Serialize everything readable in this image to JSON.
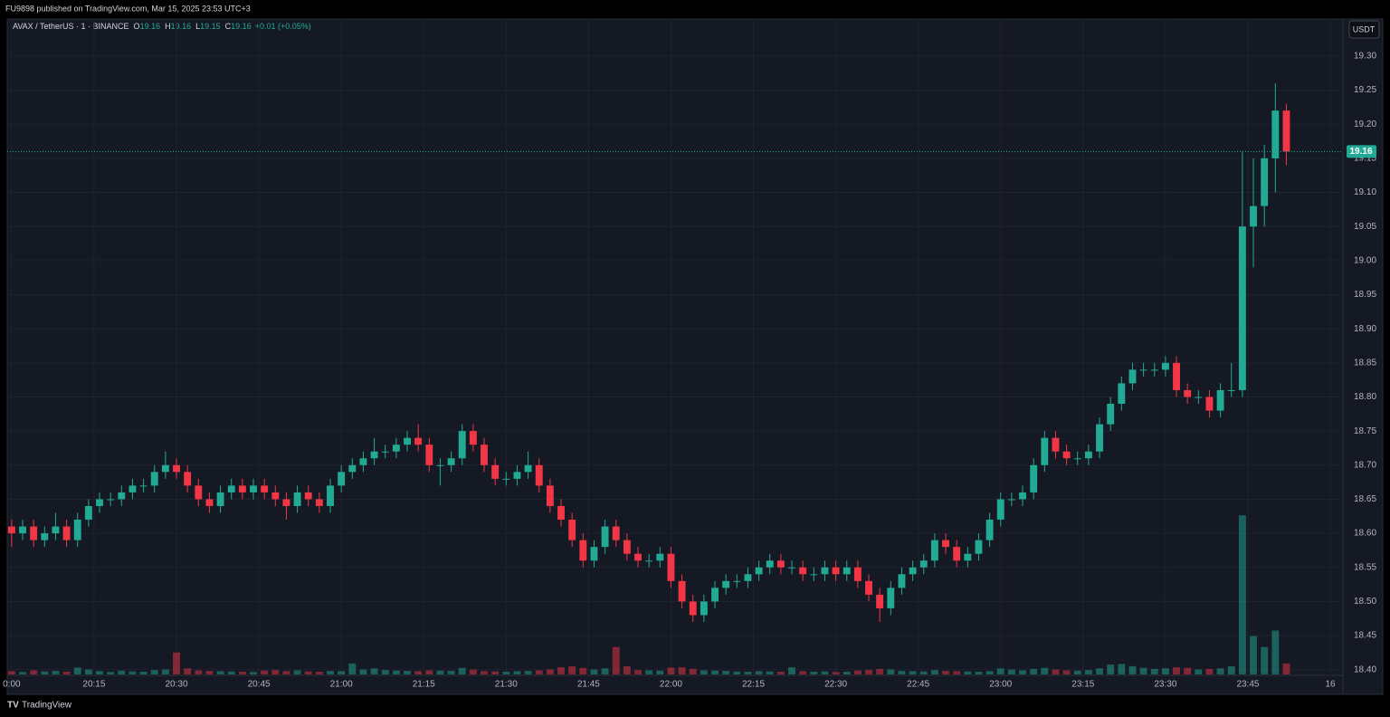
{
  "header": {
    "title": "FU9898 published on TradingView.com, Mar 15, 2025 23:53 UTC+3",
    "symbol": "AVAX / TetherUS · 1 · BINANCE",
    "legend": [
      {
        "label": "O",
        "value": 19.16
      },
      {
        "label": "H",
        "value": 19.16
      },
      {
        "label": "L",
        "value": 19.15
      },
      {
        "label": "C",
        "value": 19.16
      }
    ],
    "change": "+0.01 (+0.05%)",
    "currency_button": "USDT"
  },
  "footer": {
    "brand": "TradingView"
  },
  "chart_data": {
    "type": "candlestick",
    "up_color": "#22ab94",
    "down_color": "#f23645",
    "grid": true,
    "last_price": 19.16,
    "xlim": [
      -0.8,
      242.3
    ],
    "xticks": [
      {
        "value": 0,
        "label": "0:00"
      },
      {
        "value": 15,
        "label": "20:15"
      },
      {
        "value": 30,
        "label": "20:30"
      },
      {
        "value": 45,
        "label": "20:45"
      },
      {
        "value": 60,
        "label": "21:00"
      },
      {
        "value": 75,
        "label": "21:15"
      },
      {
        "value": 90,
        "label": "21:30"
      },
      {
        "value": 105,
        "label": "21:45"
      },
      {
        "value": 120,
        "label": "22:00"
      },
      {
        "value": 135,
        "label": "22:15"
      },
      {
        "value": 150,
        "label": "22:30"
      },
      {
        "value": 165,
        "label": "22:45"
      },
      {
        "value": 180,
        "label": "23:00"
      },
      {
        "value": 195,
        "label": "23:15"
      },
      {
        "value": 210,
        "label": "23:30"
      },
      {
        "value": 225,
        "label": "23:45"
      },
      {
        "value": 240,
        "label": "16"
      }
    ],
    "ylim": [
      18.393,
      19.353
    ],
    "yticks": [
      {
        "value": 18.4,
        "label": "18.40"
      },
      18.45,
      {
        "value": 18.5,
        "label": "18.50"
      },
      18.55,
      {
        "value": 18.6,
        "label": "18.60"
      },
      18.65,
      {
        "value": 18.7,
        "label": "18.70"
      },
      18.75,
      {
        "value": 18.8,
        "label": "18.80"
      },
      18.85,
      {
        "value": 18.9,
        "label": "18.90"
      },
      18.95,
      {
        "value": 19.0,
        "label": "19.00"
      },
      19.05,
      {
        "value": 19.1,
        "label": "19.10"
      },
      19.15,
      {
        "value": 19.2,
        "label": "19.20"
      },
      19.25,
      {
        "value": 19.3,
        "label": "19.30"
      }
    ],
    "volume_ylim": [
      0,
      66000
    ],
    "x": [
      0,
      2,
      4,
      6,
      8,
      10,
      12,
      14,
      16,
      18,
      20,
      22,
      24,
      26,
      28,
      30,
      32,
      34,
      36,
      38,
      40,
      42,
      44,
      46,
      48,
      50,
      52,
      54,
      56,
      58,
      60,
      62,
      64,
      66,
      68,
      70,
      72,
      74,
      76,
      78,
      80,
      82,
      84,
      86,
      88,
      90,
      92,
      94,
      96,
      98,
      100,
      102,
      104,
      106,
      108,
      110,
      112,
      114,
      116,
      118,
      120,
      122,
      124,
      126,
      128,
      130,
      132,
      134,
      136,
      138,
      140,
      142,
      144,
      146,
      148,
      150,
      152,
      154,
      156,
      158,
      160,
      162,
      164,
      166,
      168,
      170,
      172,
      174,
      176,
      178,
      180,
      182,
      184,
      186,
      188,
      190,
      192,
      194,
      196,
      198,
      200,
      202,
      204,
      206,
      208,
      210,
      212,
      214,
      216,
      218,
      220,
      222,
      224,
      226,
      228,
      230,
      232
    ],
    "open": [
      18.61,
      18.6,
      18.61,
      18.59,
      18.6,
      18.61,
      18.59,
      18.62,
      18.64,
      18.65,
      18.65,
      18.66,
      18.67,
      18.67,
      18.69,
      18.7,
      18.69,
      18.67,
      18.65,
      18.64,
      18.66,
      18.67,
      18.66,
      18.67,
      18.66,
      18.65,
      18.64,
      18.66,
      18.65,
      18.64,
      18.67,
      18.69,
      18.7,
      18.71,
      18.72,
      18.72,
      18.73,
      18.74,
      18.73,
      18.7,
      18.7,
      18.71,
      18.75,
      18.73,
      18.7,
      18.68,
      18.68,
      18.69,
      18.7,
      18.67,
      18.64,
      18.62,
      18.59,
      18.56,
      18.58,
      18.61,
      18.59,
      18.57,
      18.56,
      18.56,
      18.57,
      18.53,
      18.5,
      18.48,
      18.5,
      18.52,
      18.53,
      18.53,
      18.54,
      18.55,
      18.56,
      18.55,
      18.55,
      18.54,
      18.54,
      18.55,
      18.54,
      18.55,
      18.53,
      18.51,
      18.49,
      18.52,
      18.54,
      18.55,
      18.56,
      18.59,
      18.58,
      18.56,
      18.57,
      18.59,
      18.62,
      18.65,
      18.65,
      18.66,
      18.7,
      18.74,
      18.72,
      18.71,
      18.71,
      18.72,
      18.76,
      18.79,
      18.82,
      18.84,
      18.84,
      18.84,
      18.85,
      18.81,
      18.8,
      18.8,
      18.78,
      18.81,
      18.81,
      19.05,
      19.08,
      19.15,
      19.22
    ],
    "high": [
      18.62,
      18.62,
      18.62,
      18.61,
      18.63,
      18.62,
      18.63,
      18.65,
      18.66,
      18.66,
      18.67,
      18.68,
      18.68,
      18.7,
      18.72,
      18.71,
      18.7,
      18.68,
      18.66,
      18.67,
      18.68,
      18.68,
      18.68,
      18.68,
      18.67,
      18.66,
      18.67,
      18.67,
      18.66,
      18.68,
      18.7,
      18.71,
      18.72,
      18.74,
      18.73,
      18.74,
      18.75,
      18.76,
      18.74,
      18.71,
      18.72,
      18.76,
      18.76,
      18.74,
      18.71,
      18.69,
      18.7,
      18.72,
      18.71,
      18.68,
      18.65,
      18.63,
      18.6,
      18.59,
      18.62,
      18.62,
      18.6,
      18.58,
      18.57,
      18.58,
      18.58,
      18.54,
      18.51,
      18.51,
      18.53,
      18.54,
      18.54,
      18.55,
      18.56,
      18.57,
      18.57,
      18.56,
      18.56,
      18.55,
      18.56,
      18.56,
      18.56,
      18.56,
      18.54,
      18.52,
      18.53,
      18.55,
      18.56,
      18.57,
      18.6,
      18.6,
      18.59,
      18.58,
      18.6,
      18.63,
      18.66,
      18.66,
      18.67,
      18.71,
      18.75,
      18.75,
      18.73,
      18.72,
      18.73,
      18.77,
      18.8,
      18.83,
      18.85,
      18.85,
      18.85,
      18.86,
      18.86,
      18.82,
      18.81,
      18.81,
      18.82,
      18.85,
      19.16,
      19.15,
      19.17,
      19.26,
      19.23
    ],
    "low": [
      18.58,
      18.59,
      18.58,
      18.58,
      18.59,
      18.58,
      18.58,
      18.61,
      18.63,
      18.64,
      18.64,
      18.65,
      18.66,
      18.66,
      18.68,
      18.68,
      18.66,
      18.64,
      18.63,
      18.63,
      18.65,
      18.65,
      18.65,
      18.65,
      18.64,
      18.62,
      18.63,
      18.64,
      18.63,
      18.63,
      18.66,
      18.68,
      18.69,
      18.7,
      18.71,
      18.71,
      18.72,
      18.72,
      18.69,
      18.67,
      18.69,
      18.7,
      18.72,
      18.69,
      18.67,
      18.67,
      18.67,
      18.68,
      18.66,
      18.63,
      18.61,
      18.58,
      18.55,
      18.55,
      18.57,
      18.58,
      18.56,
      18.55,
      18.55,
      18.55,
      18.52,
      18.49,
      18.47,
      18.47,
      18.49,
      18.51,
      18.52,
      18.52,
      18.53,
      18.54,
      18.54,
      18.54,
      18.53,
      18.53,
      18.53,
      18.53,
      18.53,
      18.52,
      18.5,
      18.47,
      18.48,
      18.51,
      18.53,
      18.54,
      18.55,
      18.57,
      18.55,
      18.55,
      18.56,
      18.58,
      18.61,
      18.64,
      18.64,
      18.65,
      18.69,
      18.71,
      18.7,
      18.7,
      18.7,
      18.71,
      18.75,
      18.78,
      18.81,
      18.83,
      18.83,
      18.83,
      18.8,
      18.79,
      18.79,
      18.77,
      18.77,
      18.8,
      18.8,
      18.99,
      19.05,
      19.1,
      19.14
    ],
    "close": [
      18.6,
      18.61,
      18.59,
      18.6,
      18.61,
      18.59,
      18.62,
      18.64,
      18.65,
      18.65,
      18.66,
      18.67,
      18.67,
      18.69,
      18.7,
      18.69,
      18.67,
      18.65,
      18.64,
      18.66,
      18.67,
      18.66,
      18.67,
      18.66,
      18.65,
      18.64,
      18.66,
      18.65,
      18.64,
      18.67,
      18.69,
      18.7,
      18.71,
      18.72,
      18.72,
      18.73,
      18.74,
      18.73,
      18.7,
      18.7,
      18.71,
      18.75,
      18.73,
      18.7,
      18.68,
      18.68,
      18.69,
      18.7,
      18.67,
      18.64,
      18.62,
      18.59,
      18.56,
      18.58,
      18.61,
      18.59,
      18.57,
      18.56,
      18.56,
      18.57,
      18.53,
      18.5,
      18.48,
      18.5,
      18.52,
      18.53,
      18.53,
      18.54,
      18.55,
      18.56,
      18.55,
      18.55,
      18.54,
      18.54,
      18.55,
      18.54,
      18.55,
      18.53,
      18.51,
      18.49,
      18.52,
      18.54,
      18.55,
      18.56,
      18.59,
      18.58,
      18.56,
      18.57,
      18.59,
      18.62,
      18.65,
      18.65,
      18.66,
      18.7,
      18.74,
      18.72,
      18.71,
      18.71,
      18.72,
      18.76,
      18.79,
      18.82,
      18.84,
      18.84,
      18.84,
      18.85,
      18.81,
      18.8,
      18.8,
      18.78,
      18.81,
      18.81,
      19.05,
      19.08,
      19.15,
      19.22,
      19.16
    ],
    "volume": [
      1200,
      900,
      1500,
      1100,
      1300,
      1000,
      2500,
      1800,
      1200,
      900,
      1400,
      1100,
      1000,
      1600,
      1800,
      8000,
      2200,
      1500,
      1300,
      1200,
      1100,
      1000,
      900,
      1400,
      1600,
      1200,
      1500,
      1100,
      1000,
      1300,
      1200,
      4000,
      1800,
      2200,
      1600,
      1400,
      1300,
      1200,
      1500,
      1400,
      1300,
      2400,
      1800,
      1200,
      1100,
      1000,
      1200,
      1300,
      1500,
      1800,
      2600,
      3000,
      2400,
      1800,
      2200,
      10000,
      3000,
      1600,
      1500,
      1400,
      2500,
      2600,
      2000,
      1500,
      1400,
      1300,
      1100,
      1000,
      1200,
      1100,
      1000,
      2600,
      1200,
      1000,
      1100,
      900,
      1000,
      1400,
      1600,
      2000,
      1800,
      1300,
      1200,
      1100,
      1600,
      1300,
      1200,
      1100,
      1000,
      1200,
      2200,
      1800,
      1500,
      2000,
      2400,
      1800,
      1500,
      1400,
      1600,
      2200,
      3600,
      3800,
      3000,
      2400,
      2000,
      2200,
      2600,
      2400,
      1800,
      2000,
      2200,
      3000,
      58000,
      14000,
      10000,
      16000,
      4000
    ]
  }
}
